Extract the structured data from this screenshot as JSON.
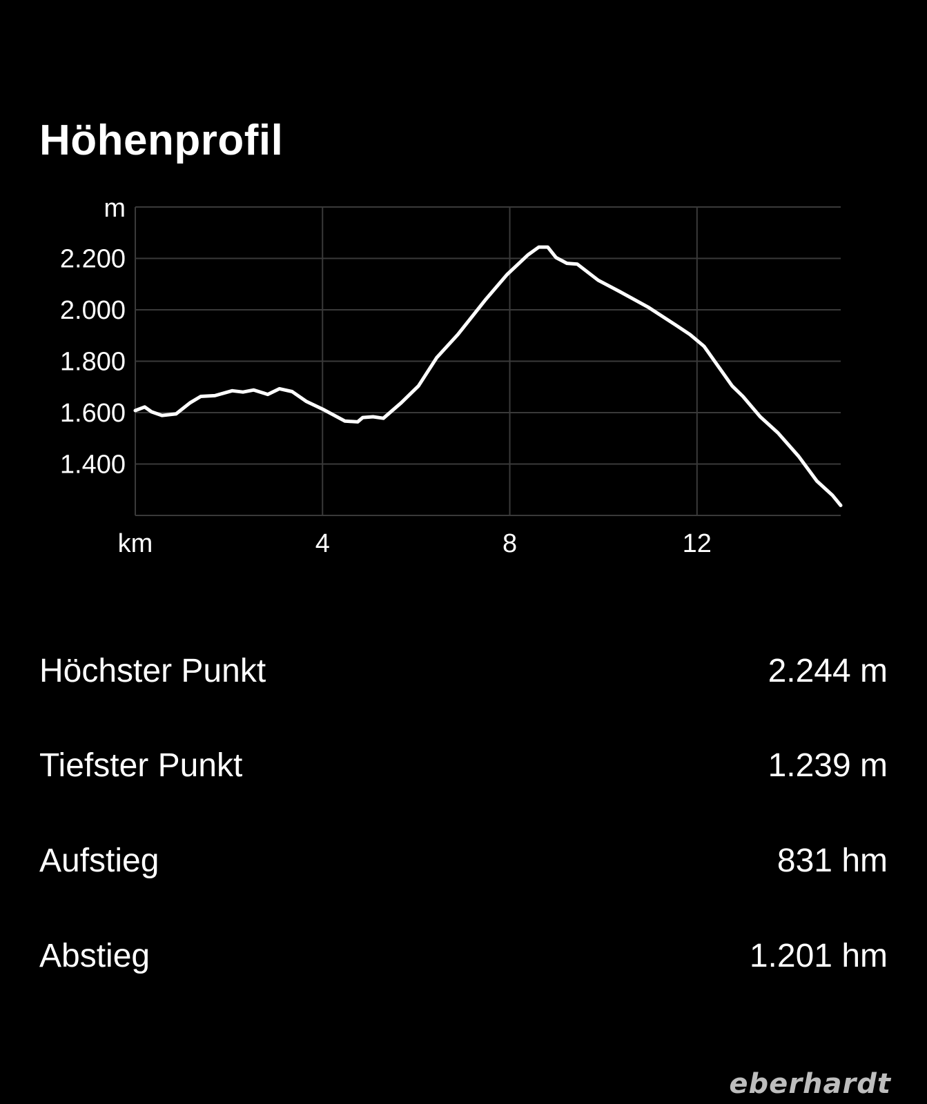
{
  "title": "Höhenprofil",
  "chart_data": {
    "type": "line",
    "xlabel": "km",
    "ylabel": "m",
    "xlim": [
      0,
      15.07
    ],
    "ylim": [
      1200,
      2400
    ],
    "x_ticks": [
      4,
      8,
      12
    ],
    "y_ticks": [
      1400,
      1600,
      1800,
      2000,
      2200
    ],
    "y_tick_labels": [
      "1.400",
      "1.600",
      "1.800",
      "2.000",
      "2.200"
    ],
    "x_tick_labels": [
      "4",
      "8",
      "12"
    ],
    "grid": true,
    "line_color": "#ffffff",
    "grid_color": "#3a3a3a",
    "x": [
      0,
      0.2,
      0.35,
      0.57,
      0.87,
      1.17,
      1.4,
      1.7,
      2.07,
      2.3,
      2.53,
      2.83,
      3.08,
      3.35,
      3.65,
      4.03,
      4.48,
      4.75,
      4.86,
      5.08,
      5.3,
      5.68,
      6.05,
      6.44,
      6.89,
      7.49,
      7.94,
      8.39,
      8.62,
      8.81,
      8.99,
      9.22,
      9.44,
      9.89,
      10.35,
      10.95,
      11.55,
      11.85,
      12.15,
      12.75,
      12.98,
      13.35,
      13.73,
      14.17,
      14.56,
      14.89,
      15.07
    ],
    "y": [
      1608,
      1622,
      1603,
      1589,
      1595,
      1638,
      1663,
      1666,
      1685,
      1680,
      1688,
      1671,
      1693,
      1682,
      1644,
      1611,
      1567,
      1564,
      1581,
      1584,
      1578,
      1638,
      1704,
      1814,
      1904,
      2041,
      2137,
      2214,
      2244,
      2244,
      2203,
      2181,
      2178,
      2115,
      2071,
      2011,
      1940,
      1904,
      1858,
      1704,
      1663,
      1584,
      1521,
      1430,
      1334,
      1279,
      1239
    ]
  },
  "stats": [
    {
      "label": "Höchster Punkt",
      "value": "2.244 m"
    },
    {
      "label": "Tiefster Punkt",
      "value": "1.239 m"
    },
    {
      "label": "Aufstieg",
      "value": "831 hm"
    },
    {
      "label": "Abstieg",
      "value": "1.201 hm"
    }
  ],
  "logo": "eberhardt"
}
